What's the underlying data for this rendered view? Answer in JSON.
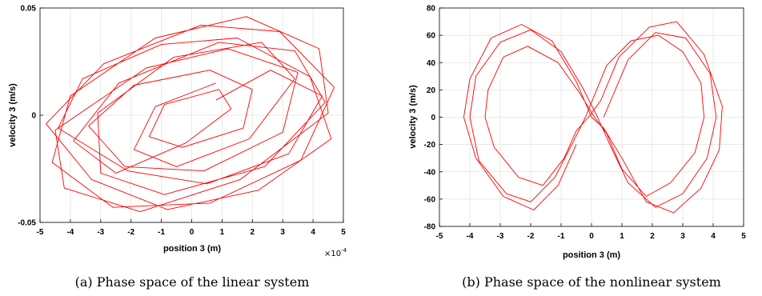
{
  "chart_data": [
    {
      "type": "line",
      "caption": "(a) Phase space of the linear system",
      "xlabel": "position 3 (m)",
      "ylabel": "velocity 3 (m/s)",
      "x_multiplier": "×10",
      "x_exponent": "-4",
      "xlim": [
        -5,
        5
      ],
      "ylim": [
        -0.05,
        0.05
      ],
      "xticks": [
        -5,
        -4,
        -3,
        -2,
        -1,
        0,
        1,
        2,
        3,
        4,
        5
      ],
      "yticks": [
        -0.05,
        0,
        0.05
      ],
      "ytick_labels": [
        "-0.05",
        "0",
        "0.05"
      ],
      "grid": true,
      "series": [
        {
          "color": "#ff0000",
          "x": [
            0.8,
            2.6,
            4.3,
            3.2,
            0.5,
            -2.1,
            -4.4,
            -3.6,
            -1.0,
            1.5,
            3.9,
            4.6,
            2.2,
            -0.8,
            -3.3,
            -4.8,
            -2.9,
            0.3,
            2.9,
            4.7,
            3.6,
            0.6,
            -2.6,
            -4.6,
            -4.0,
            -1.2,
            1.8,
            4.2,
            4.5,
            1.6,
            -1.7,
            -4.2,
            -4.5,
            -1.5,
            1.2,
            3.5,
            3.0,
            0.4,
            -2.2,
            -3.4,
            -1.9,
            0.6,
            2.0,
            1.7,
            -0.3,
            -1.4,
            -0.9,
            0.9,
            1.3,
            -0.2,
            -2.5,
            -3.9,
            -2.4,
            0.9,
            3.4,
            4.4,
            2.4,
            -0.9,
            -3.0,
            -3.1,
            -0.6,
            2.3,
            3.4,
            1.9,
            -0.5,
            -1.9,
            -1.2,
            0.8
          ],
          "y": [
            0.007,
            0.021,
            0.009,
            -0.018,
            -0.032,
            -0.026,
            -0.006,
            0.017,
            0.033,
            0.036,
            0.018,
            -0.011,
            -0.035,
            -0.044,
            -0.03,
            -0.004,
            0.024,
            0.042,
            0.039,
            0.013,
            -0.021,
            -0.041,
            -0.043,
            -0.022,
            0.009,
            0.036,
            0.046,
            0.031,
            0.001,
            -0.03,
            -0.045,
            -0.034,
            -0.007,
            0.022,
            0.031,
            0.02,
            -0.008,
            -0.026,
            -0.024,
            -0.005,
            0.014,
            0.021,
            0.012,
            -0.006,
            -0.015,
            -0.01,
            0.005,
            0.012,
            0.003,
            -0.013,
            -0.027,
            -0.012,
            0.015,
            0.034,
            0.03,
            0.006,
            -0.024,
            -0.037,
            -0.027,
            0.001,
            0.027,
            0.034,
            0.017,
            -0.011,
            -0.024,
            -0.016,
            0.004,
            0.015
          ]
        }
      ]
    },
    {
      "type": "line",
      "caption": "(b) Phase space of the nonlinear system",
      "xlabel": "position 3 (m)",
      "ylabel": "velocity 3 (m/s)",
      "xlim": [
        -5,
        5
      ],
      "ylim": [
        -80,
        80
      ],
      "xticks": [
        -5,
        -4,
        -3,
        -2,
        -1,
        0,
        1,
        2,
        3,
        4,
        5
      ],
      "yticks": [
        -80,
        -60,
        -40,
        -20,
        0,
        20,
        40,
        60,
        80
      ],
      "ytick_labels": [
        "-80",
        "-60",
        "-40",
        "-20",
        "0",
        "20",
        "40",
        "60",
        "80"
      ],
      "grid": true,
      "series": [
        {
          "color": "#ff0000",
          "x": [
            0.4,
            1.2,
            2.1,
            3.1,
            3.9,
            4.1,
            3.8,
            3.0,
            2.1,
            1.2,
            0.6,
            0.2,
            -0.3,
            -1.0,
            -2.0,
            -3.0,
            -3.8,
            -4.0,
            -3.7,
            -2.8,
            -2.0,
            -1.2,
            -0.6,
            -0.2,
            0.5,
            1.3,
            2.2,
            3.0,
            3.6,
            3.7,
            3.4,
            2.6,
            1.8,
            1.0,
            0.5,
            0.1,
            -0.4,
            -1.1,
            -2.1,
            -2.9,
            -3.4,
            -3.5,
            -3.2,
            -2.4,
            -1.6,
            -0.9,
            -0.5,
            -0.1,
            0.3,
            0.9,
            1.9,
            2.8,
            3.7,
            4.3,
            4.2,
            3.6,
            2.7,
            1.8,
            1.0,
            0.4,
            0.0,
            -0.5,
            -1.3,
            -2.3,
            -3.3,
            -4.0,
            -4.2,
            -3.8,
            -2.9,
            -1.9,
            -1.1,
            -0.5
          ],
          "y": [
            0.0,
            42.0,
            62.0,
            58.0,
            32.0,
            0.0,
            -30.0,
            -56.0,
            -66.0,
            -48.0,
            -20.0,
            0.0,
            22.0,
            48.0,
            64.0,
            55.0,
            30.0,
            0.0,
            -32.0,
            -56.0,
            -62.0,
            -44.0,
            -18.0,
            0.0,
            38.0,
            56.0,
            60.0,
            48.0,
            25.0,
            0.0,
            -26.0,
            -48.0,
            -58.0,
            -38.0,
            -12.0,
            0.0,
            18.0,
            40.0,
            52.0,
            44.0,
            20.0,
            0.0,
            -22.0,
            -44.0,
            -50.0,
            -30.0,
            -10.0,
            0.0,
            12.0,
            44.0,
            66.0,
            70.0,
            46.0,
            8.0,
            -24.0,
            -52.0,
            -70.0,
            -62.0,
            -30.0,
            -8.0,
            0.0,
            26.0,
            56.0,
            68.0,
            58.0,
            28.0,
            0.0,
            -30.0,
            -58.0,
            -68.0,
            -50.0,
            -20.0
          ]
        }
      ]
    }
  ]
}
